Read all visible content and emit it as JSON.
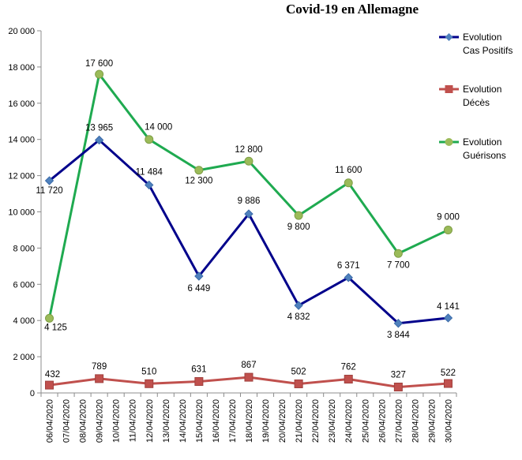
{
  "chart_data": {
    "type": "line",
    "title": "Covid-19 en Allemagne",
    "xlabel": "",
    "ylabel": "",
    "ylim": [
      0,
      20000
    ],
    "yticks": [
      "0",
      "2 000",
      "4 000",
      "6 000",
      "8 000",
      "10 000",
      "12 000",
      "14 000",
      "16 000",
      "18 000",
      "20 000"
    ],
    "categories": [
      "06/04/2020",
      "07/04/2020",
      "08/04/2020",
      "09/04/2020",
      "10/04/2020",
      "11/04/2020",
      "12/04/2020",
      "13/04/2020",
      "14/04/2020",
      "15/04/2020",
      "16/04/2020",
      "17/04/2020",
      "18/04/2020",
      "19/04/2020",
      "20/04/2020",
      "21/04/2020",
      "22/04/2020",
      "23/04/2020",
      "24/04/2020",
      "25/04/2020",
      "26/04/2020",
      "27/04/2020",
      "28/04/2020",
      "29/04/2020",
      "30/04/2020"
    ],
    "grid": false,
    "legend_position": "right",
    "series": [
      {
        "name": "Evolution Cas Positifs",
        "legend_lines": [
          "Evolution",
          "Cas Positifs"
        ],
        "color": "#00008b",
        "marker": "diamond",
        "points": [
          {
            "x": "06/04/2020",
            "y": 11720,
            "label": "11 720"
          },
          {
            "x": "09/04/2020",
            "y": 13965,
            "label": "13 965"
          },
          {
            "x": "12/04/2020",
            "y": 11484,
            "label": "11 484"
          },
          {
            "x": "15/04/2020",
            "y": 6449,
            "label": "6 449"
          },
          {
            "x": "18/04/2020",
            "y": 9886,
            "label": "9 886"
          },
          {
            "x": "21/04/2020",
            "y": 4832,
            "label": "4 832"
          },
          {
            "x": "24/04/2020",
            "y": 6371,
            "label": "6 371"
          },
          {
            "x": "27/04/2020",
            "y": 3844,
            "label": "3 844"
          },
          {
            "x": "30/04/2020",
            "y": 4141,
            "label": "4 141"
          }
        ]
      },
      {
        "name": "Evolution Décès",
        "legend_lines": [
          "Evolution",
          "Décès"
        ],
        "color": "#c0504d",
        "marker": "square",
        "points": [
          {
            "x": "06/04/2020",
            "y": 432,
            "label": "432"
          },
          {
            "x": "09/04/2020",
            "y": 789,
            "label": "789"
          },
          {
            "x": "12/04/2020",
            "y": 510,
            "label": "510"
          },
          {
            "x": "15/04/2020",
            "y": 631,
            "label": "631"
          },
          {
            "x": "18/04/2020",
            "y": 867,
            "label": "867"
          },
          {
            "x": "21/04/2020",
            "y": 502,
            "label": "502"
          },
          {
            "x": "24/04/2020",
            "y": 762,
            "label": "762"
          },
          {
            "x": "27/04/2020",
            "y": 327,
            "label": "327"
          },
          {
            "x": "30/04/2020",
            "y": 522,
            "label": "522"
          }
        ]
      },
      {
        "name": "Evolution Guérisons",
        "legend_lines": [
          "Evolution",
          "Guérisons"
        ],
        "color": "#1faa50",
        "marker_color": "#9bbb59",
        "marker": "circle",
        "points": [
          {
            "x": "06/04/2020",
            "y": 4125,
            "label": "4 125"
          },
          {
            "x": "09/04/2020",
            "y": 17600,
            "label": "17 600"
          },
          {
            "x": "12/04/2020",
            "y": 14000,
            "label": "14 000"
          },
          {
            "x": "15/04/2020",
            "y": 12300,
            "label": "12 300"
          },
          {
            "x": "18/04/2020",
            "y": 12800,
            "label": "12 800"
          },
          {
            "x": "21/04/2020",
            "y": 9800,
            "label": "9 800"
          },
          {
            "x": "24/04/2020",
            "y": 11600,
            "label": "11 600"
          },
          {
            "x": "27/04/2020",
            "y": 7700,
            "label": "7 700"
          },
          {
            "x": "30/04/2020",
            "y": 9000,
            "label": "9 000"
          }
        ]
      }
    ]
  }
}
